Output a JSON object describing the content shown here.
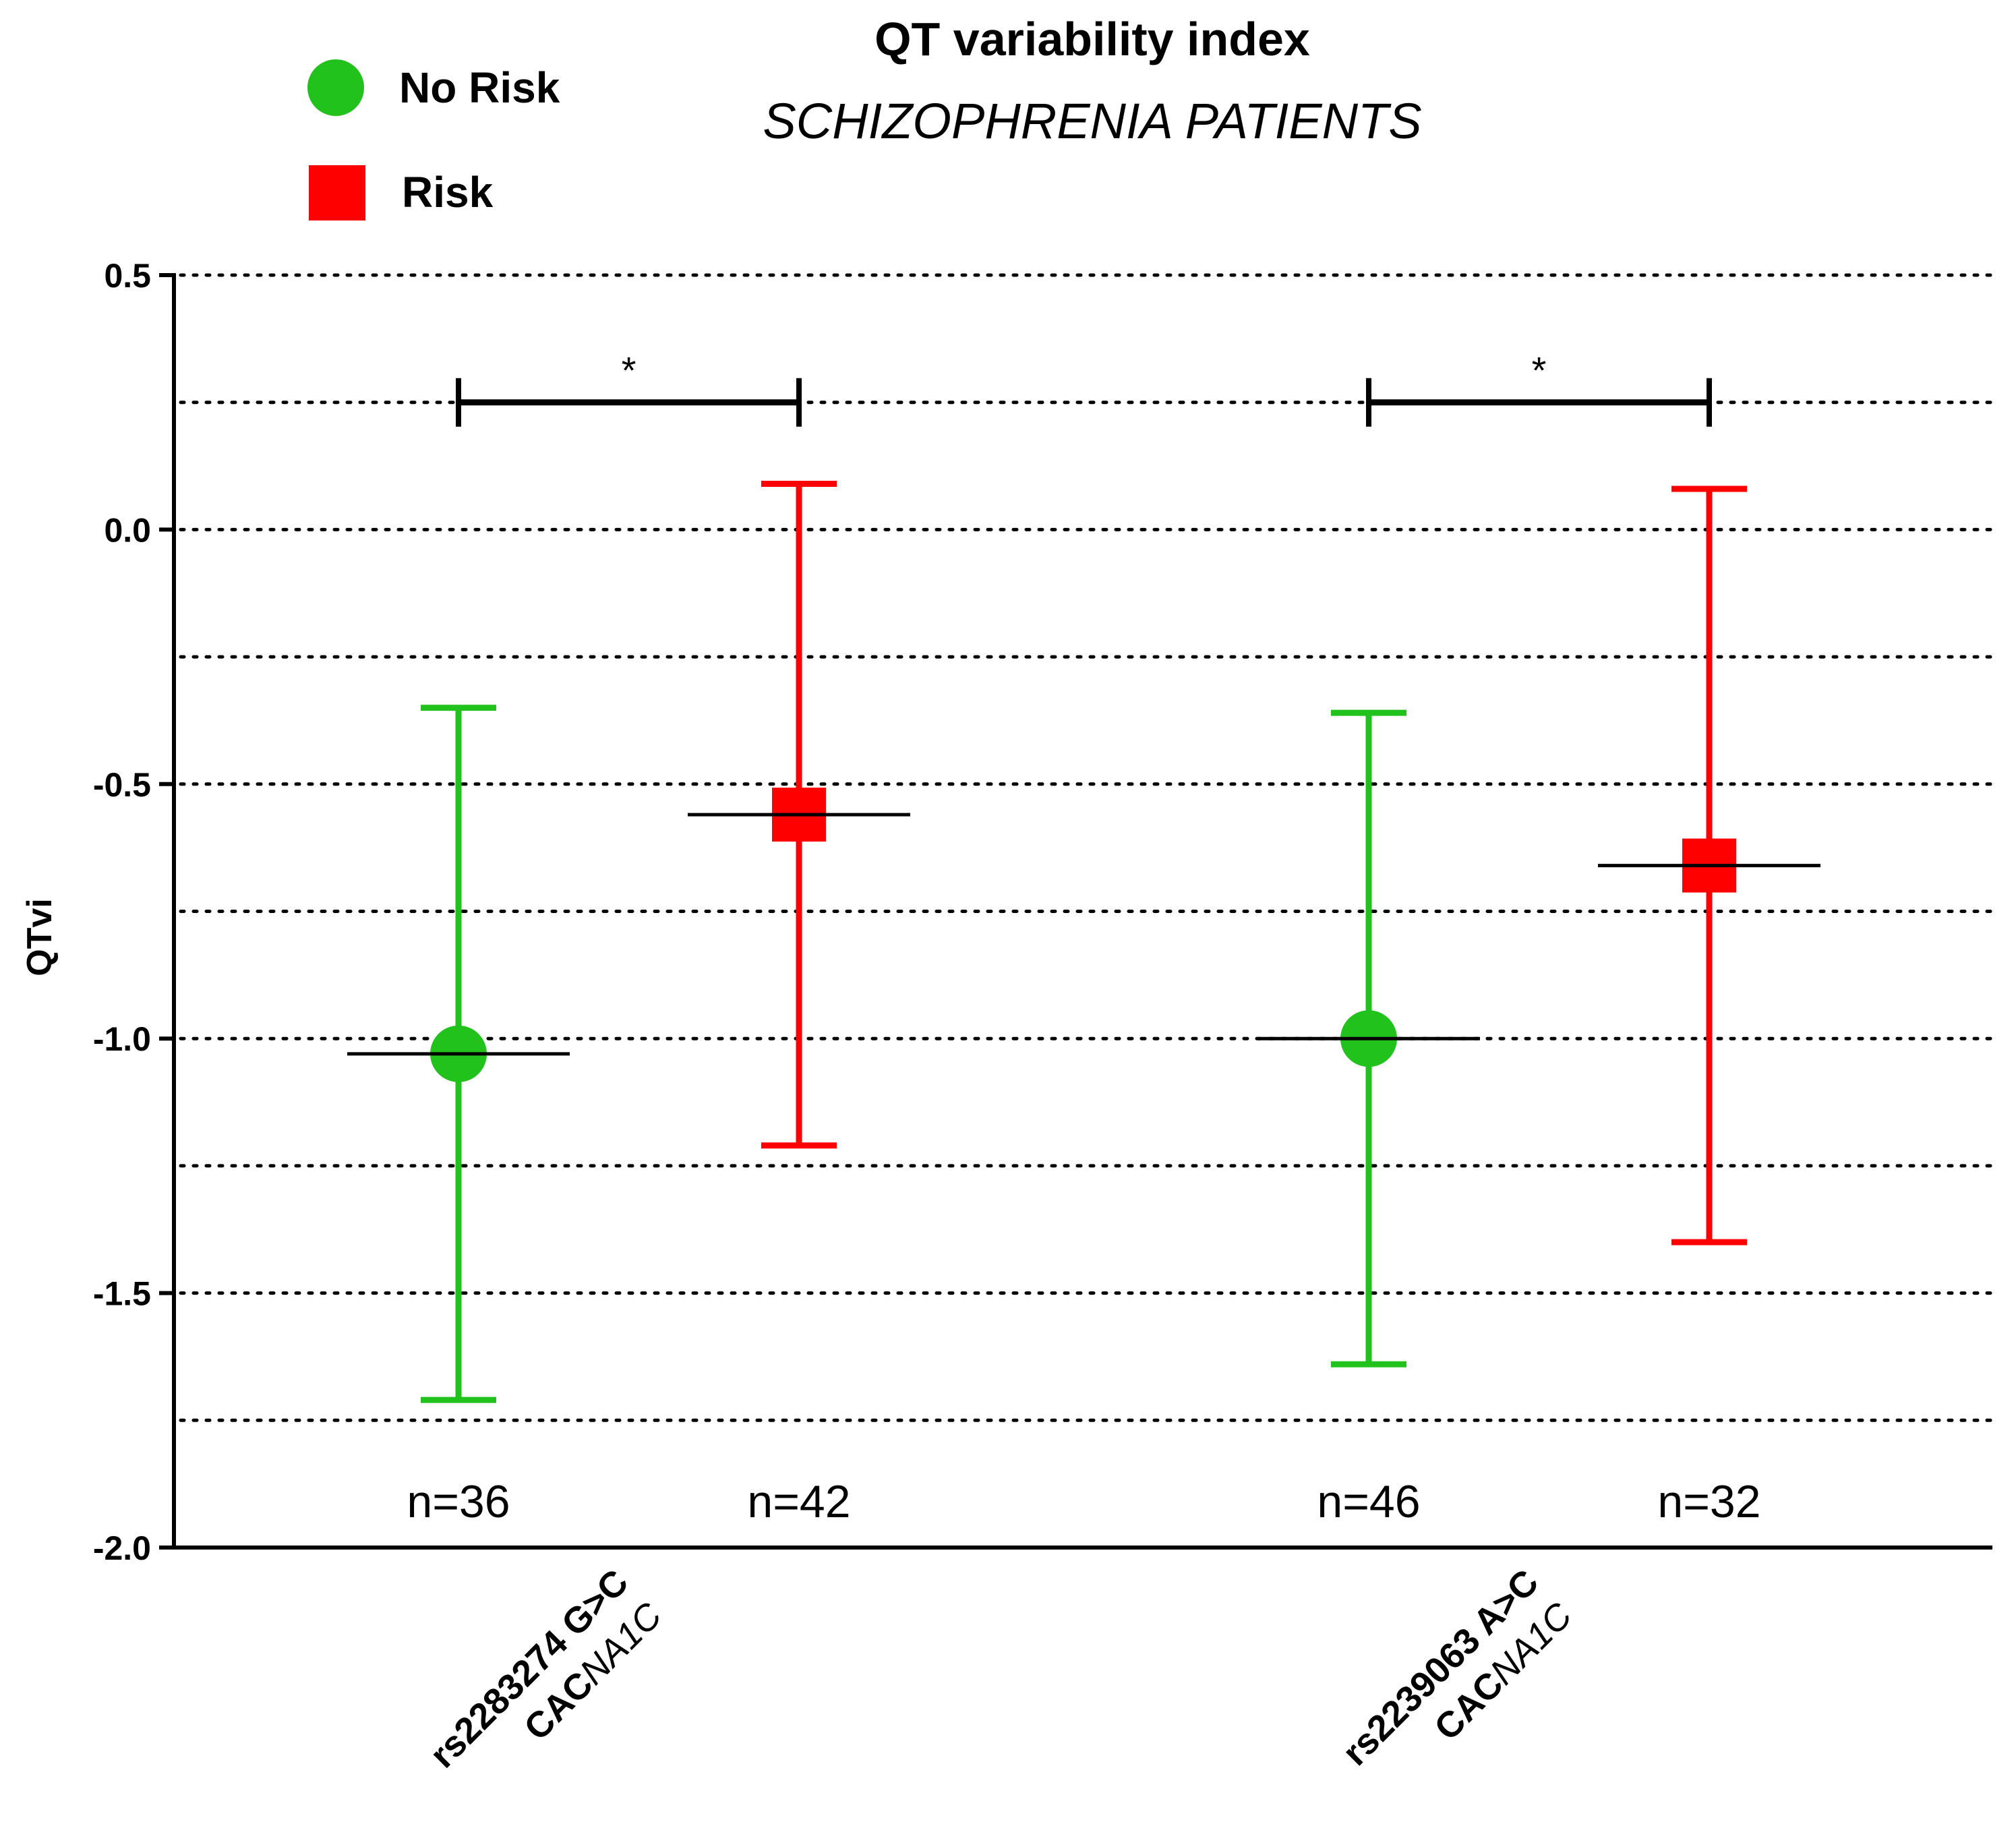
{
  "chart_data": {
    "type": "errorbar",
    "title": "QT variability index",
    "subtitle": "SCHIZOPHRENIA  PATIENTS",
    "ylabel": "QTvi",
    "ylim": [
      -2.0,
      0.5
    ],
    "yticks": [
      "0.5",
      "0.0",
      "-0.5",
      "-1.0",
      "-1.5",
      "-2.0"
    ],
    "ytick_values": [
      0.5,
      0.0,
      -0.5,
      -1.0,
      -1.5,
      -2.0
    ],
    "grid_values": [
      0.5,
      0.25,
      0.0,
      -0.25,
      -0.5,
      -0.75,
      -1.0,
      -1.25,
      -1.5,
      -1.75
    ],
    "legend": [
      {
        "name": "No Risk",
        "color": "#22c21c",
        "marker": "circle"
      },
      {
        "name": "Risk",
        "color": "#ff0000",
        "marker": "square"
      }
    ],
    "categories": [
      {
        "snp": "rs2283274 G>C",
        "gene_bold": "CAC",
        "gene_italic": "NA1C"
      },
      {
        "snp": "rs2239063 A>C",
        "gene_bold": "CAC",
        "gene_italic": "NA1C"
      }
    ],
    "points": [
      {
        "category": 0,
        "group": "No Risk",
        "mean": -1.03,
        "upper": -0.35,
        "lower": -1.71,
        "n_label": "n=36"
      },
      {
        "category": 0,
        "group": "Risk",
        "mean": -0.56,
        "upper": 0.09,
        "lower": -1.21,
        "n_label": "n=42"
      },
      {
        "category": 1,
        "group": "No Risk",
        "mean": -1.0,
        "upper": -0.36,
        "lower": -1.64,
        "n_label": "n=46"
      },
      {
        "category": 1,
        "group": "Risk",
        "mean": -0.66,
        "upper": 0.08,
        "lower": -1.4,
        "n_label": "n=32"
      }
    ],
    "significance": [
      {
        "category": 0,
        "y": 0.25,
        "label": "*"
      },
      {
        "category": 1,
        "y": 0.25,
        "label": "*"
      }
    ]
  }
}
